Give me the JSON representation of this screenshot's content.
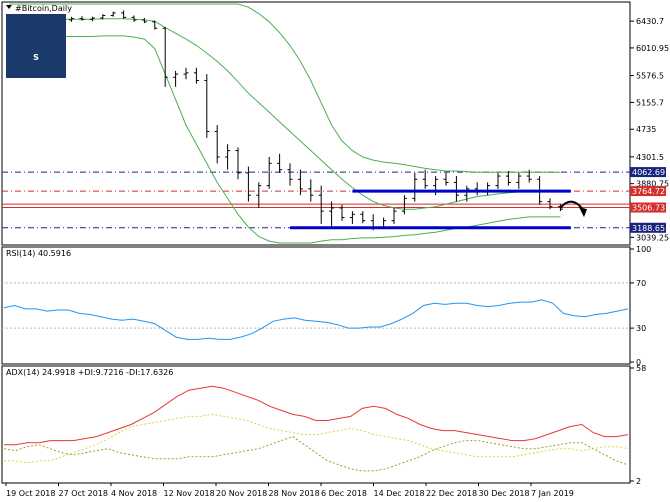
{
  "window": {
    "title": "#Bitcoin,Daily"
  },
  "chart_data": [
    {
      "type": "candlestick",
      "title": "#Bitcoin,Daily",
      "ylim": [
        2950,
        6700
      ],
      "y_ticks": [
        6430.7,
        6010.95,
        5576.5,
        5155.7,
        4735.0,
        4301.5,
        3880.75,
        3039.25
      ],
      "x_ticks": [
        "19 Oct 2018",
        "27 Oct 2018",
        "4 Nov 2018",
        "12 Nov 2018",
        "20 Nov 2018",
        "28 Nov 2018",
        "6 Dec 2018",
        "14 Dec 2018",
        "22 Dec 2018",
        "30 Dec 2018",
        "7 Jan 2019"
      ],
      "price_labels": [
        {
          "value": 4062.69,
          "text": "4062.69",
          "color": "#1a237e"
        },
        {
          "value": 3764.72,
          "text": "3764.72",
          "color": "#d32f2f"
        },
        {
          "value": 3506.73,
          "text": "3506.73",
          "color": "#d32f2f"
        },
        {
          "value": 3188.65,
          "text": "3188.65",
          "color": "#1a237e"
        }
      ],
      "levels": [
        {
          "value": 4062.69,
          "style": "dashdot",
          "color": "#1a237e"
        },
        {
          "value": 3764.72,
          "style": "dashdot",
          "color": "#d32f2f"
        },
        {
          "value": 3560.0,
          "style": "solid",
          "color": "#d32f2f"
        },
        {
          "value": 3506.73,
          "style": "solid",
          "color": "#d32f2f"
        },
        {
          "value": 3188.65,
          "style": "dashdot",
          "color": "#1a237e"
        }
      ],
      "highlight_lines": [
        {
          "value": 3764.72,
          "from": 33,
          "to": 54,
          "color": "#0000cc"
        },
        {
          "value": 3188.65,
          "from": 27,
          "to": 54,
          "color": "#0000cc"
        }
      ],
      "forecast_arrow": {
        "from": 53,
        "to": 54.5,
        "direction": "down"
      },
      "series": [
        {
          "kind": "candles",
          "values": [
            [
              6480,
              6520,
              6460,
              6500
            ],
            [
              6500,
              6530,
              6470,
              6490
            ],
            [
              6490,
              6520,
              6440,
              6460
            ],
            [
              6460,
              6510,
              6430,
              6480
            ],
            [
              6480,
              6490,
              6360,
              6380
            ],
            [
              6380,
              6470,
              6350,
              6450
            ],
            [
              6450,
              6500,
              6420,
              6470
            ],
            [
              6470,
              6510,
              6440,
              6460
            ],
            [
              6460,
              6500,
              6430,
              6480
            ],
            [
              6480,
              6540,
              6460,
              6520
            ],
            [
              6520,
              6580,
              6500,
              6560
            ],
            [
              6560,
              6600,
              6470,
              6490
            ],
            [
              6490,
              6520,
              6420,
              6450
            ],
            [
              6450,
              6480,
              6400,
              6420
            ],
            [
              6420,
              6440,
              6300,
              6320
            ],
            [
              6320,
              6340,
              5400,
              5550
            ],
            [
              5550,
              5650,
              5400,
              5600
            ],
            [
              5600,
              5700,
              5520,
              5620
            ],
            [
              5620,
              5700,
              5450,
              5500
            ],
            [
              5500,
              5600,
              4600,
              4700
            ],
            [
              4700,
              4800,
              4200,
              4300
            ],
            [
              4300,
              4500,
              4100,
              4400
            ],
            [
              4400,
              4450,
              3950,
              4050
            ],
            [
              4050,
              4150,
              3600,
              3700
            ],
            [
              3700,
              3900,
              3500,
              3850
            ],
            [
              3850,
              4300,
              3800,
              4200
            ],
            [
              4200,
              4350,
              4050,
              4100
            ],
            [
              4100,
              4200,
              3850,
              3950
            ],
            [
              3950,
              4100,
              3700,
              3800
            ],
            [
              3800,
              3950,
              3600,
              3700
            ],
            [
              3700,
              3850,
              3250,
              3450
            ],
            [
              3450,
              3600,
              3200,
              3500
            ],
            [
              3500,
              3550,
              3300,
              3350
            ],
            [
              3350,
              3450,
              3250,
              3400
            ],
            [
              3400,
              3450,
              3260,
              3300
            ],
            [
              3300,
              3400,
              3150,
              3200
            ],
            [
              3200,
              3350,
              3180,
              3300
            ],
            [
              3300,
              3500,
              3250,
              3450
            ],
            [
              3450,
              3700,
              3400,
              3650
            ],
            [
              3650,
              4050,
              3600,
              3950
            ],
            [
              3950,
              4100,
              3800,
              3850
            ],
            [
              3850,
              4000,
              3700,
              3950
            ],
            [
              3950,
              4050,
              3850,
              3900
            ],
            [
              3900,
              4000,
              3600,
              3700
            ],
            [
              3700,
              3850,
              3600,
              3800
            ],
            [
              3800,
              3900,
              3700,
              3750
            ],
            [
              3750,
              3900,
              3700,
              3850
            ],
            [
              3850,
              4050,
              3800,
              4000
            ],
            [
              4000,
              4080,
              3850,
              3900
            ],
            [
              3900,
              4050,
              3800,
              4000
            ],
            [
              4000,
              4100,
              3900,
              3950
            ],
            [
              3950,
              4000,
              3550,
              3600
            ],
            [
              3600,
              3650,
              3480,
              3520
            ],
            [
              3520,
              3560,
              3450,
              3480
            ]
          ]
        },
        {
          "kind": "band_upper",
          "values": [
            6700,
            6700,
            6700,
            6700,
            6700,
            6700,
            6700,
            6700,
            6700,
            6700,
            6700,
            6700,
            6700,
            6700,
            6700,
            6700,
            6700,
            6700,
            6700,
            6700,
            6700,
            6700,
            6700,
            6650,
            6550,
            6420,
            6250,
            6050,
            5800,
            5500,
            5150,
            4800,
            4550,
            4400,
            4300,
            4250,
            4220,
            4200,
            4180,
            4150,
            4120,
            4100,
            4080,
            4080,
            4070,
            4060,
            4060,
            4060,
            4060,
            4060,
            4060,
            4060,
            4060,
            4060
          ]
        },
        {
          "kind": "band_mid",
          "values": [
            6460,
            6470,
            6470,
            6470,
            6460,
            6460,
            6460,
            6460,
            6460,
            6470,
            6470,
            6470,
            6460,
            6450,
            6430,
            6330,
            6240,
            6150,
            6050,
            5930,
            5800,
            5650,
            5480,
            5300,
            5150,
            5000,
            4850,
            4700,
            4550,
            4400,
            4250,
            4100,
            3950,
            3820,
            3700,
            3600,
            3540,
            3500,
            3480,
            3480,
            3500,
            3520,
            3560,
            3600,
            3640,
            3680,
            3700,
            3720,
            3740,
            3750,
            3760,
            3760,
            3760,
            3760
          ]
        },
        {
          "kind": "band_lower",
          "values": [
            6200,
            6210,
            6210,
            6210,
            6200,
            6190,
            6190,
            6190,
            6190,
            6200,
            6200,
            6200,
            6180,
            6150,
            6000,
            5600,
            5200,
            4800,
            4500,
            4200,
            3900,
            3650,
            3400,
            3200,
            3050,
            2980,
            2950,
            2950,
            2950,
            2950,
            2980,
            3000,
            3000,
            3020,
            3030,
            3030,
            3040,
            3050,
            3070,
            3080,
            3100,
            3120,
            3150,
            3180,
            3200,
            3230,
            3260,
            3290,
            3320,
            3340,
            3360,
            3360,
            3360,
            3360
          ]
        }
      ]
    },
    {
      "type": "line",
      "title": "RSI(14) 40.5916",
      "ylim": [
        0,
        100
      ],
      "y_ticks": [
        100,
        70,
        30,
        0
      ],
      "series": [
        {
          "name": "RSI(14)",
          "color": "#2196f3",
          "values": [
            48,
            50,
            47,
            47,
            45,
            46,
            46,
            43,
            42,
            40,
            38,
            37,
            38,
            36,
            34,
            28,
            22,
            20,
            20,
            21,
            20,
            20,
            22,
            25,
            30,
            36,
            38,
            39,
            37,
            36,
            35,
            33,
            30,
            30,
            31,
            31,
            34,
            38,
            43,
            50,
            52,
            51,
            52,
            52,
            50,
            49,
            50,
            52,
            53,
            53,
            55,
            52,
            43,
            41,
            40,
            42,
            43,
            45,
            47
          ]
        }
      ]
    },
    {
      "type": "line",
      "title": "ADX(14) 24.9918 +DI:9.7216 -DI:17.6326",
      "ylim": [
        2,
        58
      ],
      "y_ticks": [
        58,
        2
      ],
      "series": [
        {
          "name": "ADX(14)",
          "color": "#e53935",
          "values": [
            20,
            20,
            21,
            21,
            22,
            22,
            22,
            23,
            24,
            26,
            28,
            30,
            33,
            36,
            40,
            44,
            47,
            48,
            49,
            48,
            46,
            44,
            42,
            39,
            37,
            35,
            34,
            32,
            32,
            33,
            34,
            38,
            39,
            38,
            35,
            33,
            30,
            28,
            27,
            27,
            26,
            25,
            24,
            23,
            22,
            22,
            23,
            25,
            27,
            29,
            30,
            26,
            24,
            24,
            25
          ]
        },
        {
          "name": "+DI",
          "color": "#9e9d24",
          "values": [
            18,
            17,
            19,
            20,
            18,
            16,
            15,
            16,
            17,
            18,
            16,
            15,
            14,
            13,
            13,
            13,
            14,
            14,
            14,
            15,
            16,
            17,
            18,
            20,
            22,
            24,
            20,
            16,
            12,
            10,
            8,
            7,
            7,
            8,
            10,
            12,
            14,
            17,
            19,
            21,
            22,
            22,
            21,
            20,
            19,
            18,
            18,
            19,
            20,
            21,
            21,
            18,
            15,
            12,
            10
          ]
        },
        {
          "name": "-DI",
          "color": "#cddc39",
          "values": [
            12,
            12,
            11,
            12,
            12,
            14,
            16,
            18,
            20,
            23,
            26,
            29,
            30,
            31,
            32,
            33,
            34,
            34,
            35,
            34,
            33,
            32,
            30,
            28,
            27,
            26,
            25,
            25,
            26,
            27,
            28,
            27,
            25,
            24,
            23,
            22,
            20,
            18,
            17,
            16,
            15,
            14,
            14,
            14,
            14,
            15,
            16,
            17,
            18,
            18,
            17,
            18,
            19,
            19,
            18
          ]
        }
      ]
    }
  ]
}
